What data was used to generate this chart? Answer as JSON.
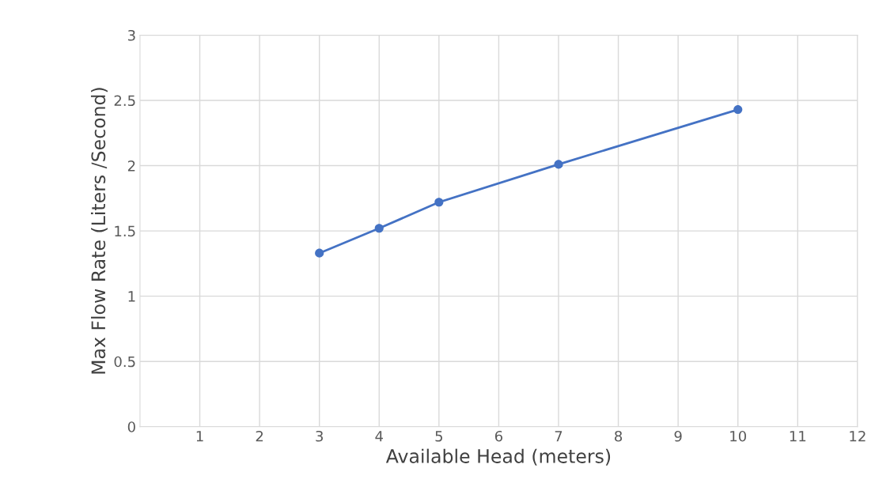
{
  "chart_data": {
    "type": "line",
    "xlabel": "Available Head (meters)",
    "ylabel": "Max Flow Rate (Liters /Second)",
    "x": [
      3,
      4,
      5,
      7,
      10
    ],
    "series": [
      {
        "color": "#4472c4",
        "values": [
          1.33,
          1.52,
          1.72,
          2.01,
          2.43
        ]
      }
    ],
    "xlim": [
      0,
      12
    ],
    "xticks": [
      1,
      2,
      3,
      4,
      5,
      6,
      7,
      8,
      9,
      10,
      11,
      12
    ],
    "ylim": [
      0,
      3
    ],
    "yticks": [
      0,
      0.5,
      1,
      1.5,
      2,
      2.5,
      3
    ],
    "grid": true,
    "marker": "circle",
    "line_style": "solid"
  }
}
